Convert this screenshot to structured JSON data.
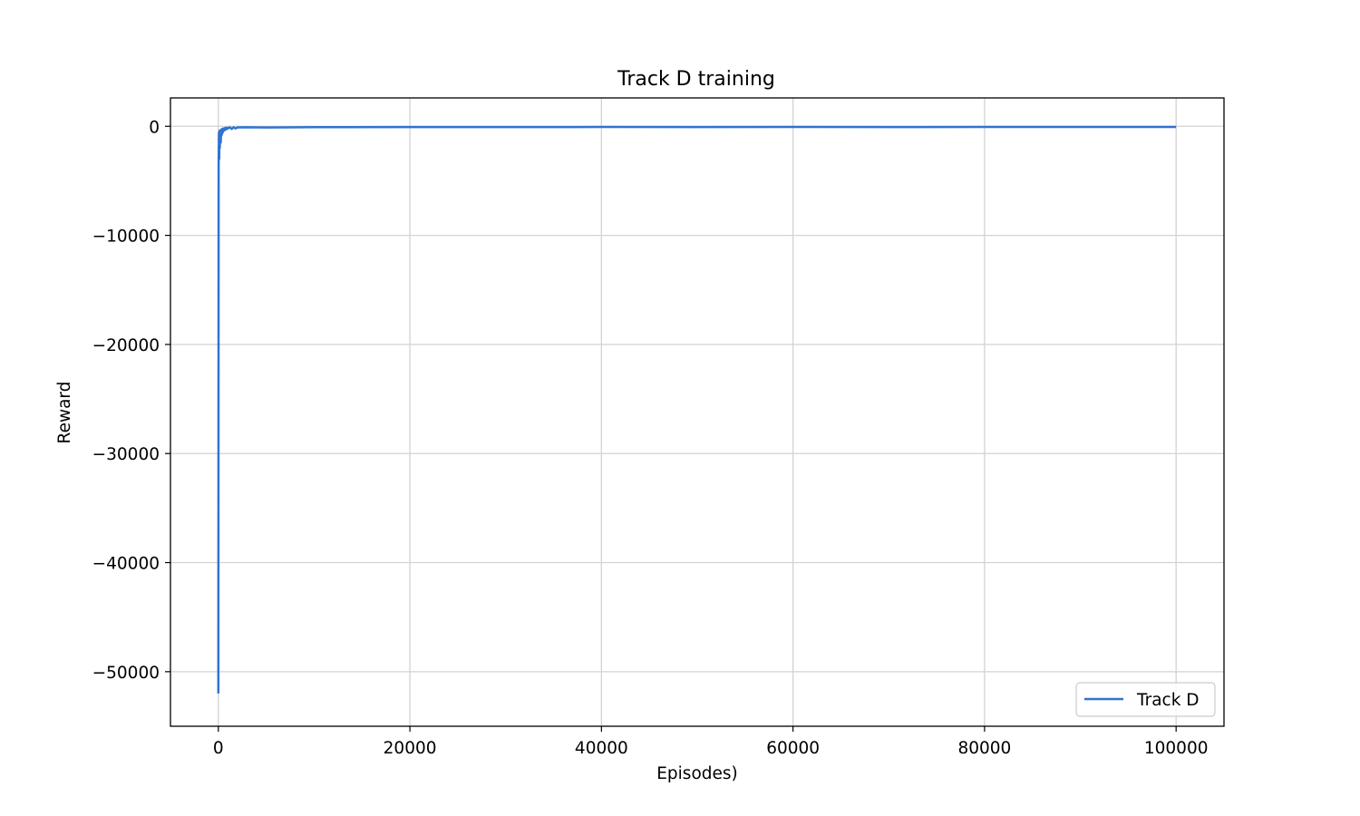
{
  "chart_data": {
    "type": "line",
    "title": "Track D training",
    "xlabel": "Episodes)",
    "ylabel": "Reward",
    "xlim": [
      -5000,
      105000
    ],
    "ylim": [
      -55000,
      2600
    ],
    "xticks": [
      0,
      20000,
      40000,
      60000,
      80000,
      100000
    ],
    "yticks": [
      0,
      -10000,
      -20000,
      -30000,
      -40000,
      -50000
    ],
    "xtick_labels": [
      "0",
      "20000",
      "40000",
      "60000",
      "80000",
      "100000"
    ],
    "ytick_labels": [
      "0",
      "−10000",
      "−20000",
      "−30000",
      "−40000",
      "−50000"
    ],
    "grid": true,
    "legend_position": "lower-right",
    "colors": {
      "series": "#2f74d0",
      "grid": "#d3d3d3",
      "axes": "#000000"
    },
    "series": [
      {
        "name": "Track D",
        "x": [
          0,
          30,
          60,
          90,
          120,
          150,
          200,
          250,
          300,
          350,
          400,
          450,
          500,
          600,
          700,
          800,
          900,
          1000,
          1200,
          1400,
          1600,
          1800,
          2000,
          3000,
          5000,
          10000,
          20000,
          30000,
          40000,
          50000,
          60000,
          70000,
          80000,
          90000,
          100000
        ],
        "y": [
          -52000,
          -3500,
          -600,
          -3000,
          -400,
          -2000,
          -500,
          -1500,
          -300,
          -800,
          -250,
          -600,
          -200,
          -400,
          -150,
          -300,
          -120,
          -200,
          -90,
          -250,
          -80,
          -200,
          -100,
          -90,
          -110,
          -80,
          -70,
          -75,
          -65,
          -70,
          -60,
          -70,
          -60,
          -65,
          -60
        ]
      }
    ]
  }
}
